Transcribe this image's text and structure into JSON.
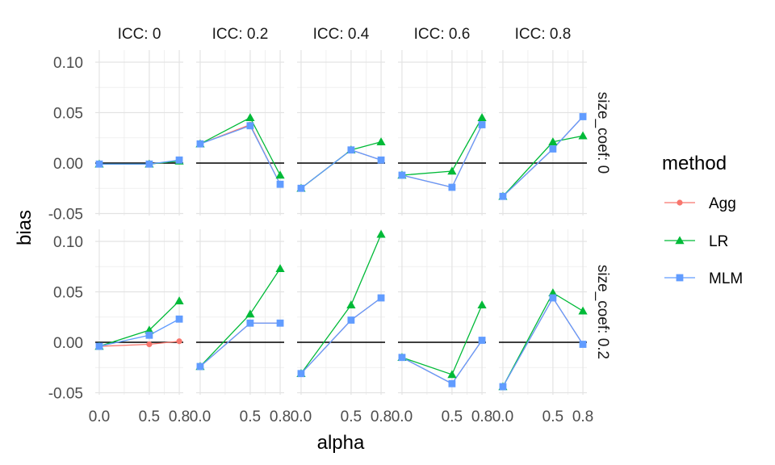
{
  "chart_data": {
    "type": "line",
    "xlabel": "alpha",
    "ylabel": "bias",
    "x": [
      0.0,
      0.5,
      0.8
    ],
    "x_tick_labels": [
      "0.0",
      "0.5",
      "0.8"
    ],
    "y_ticks": [
      -0.05,
      0.0,
      0.05,
      0.1
    ],
    "y_tick_labels": [
      "-0.05",
      "0.00",
      "0.05",
      "0.10"
    ],
    "ylim": [
      -0.052,
      0.112
    ],
    "reference_line": 0,
    "grid": true,
    "legend": {
      "title": "method",
      "position": "right",
      "entries": [
        {
          "name": "Agg",
          "color": "#F8766D",
          "shape": "circle"
        },
        {
          "name": "LR",
          "color": "#00BA38",
          "shape": "triangle"
        },
        {
          "name": "MLM",
          "color": "#619CFF",
          "shape": "square"
        }
      ]
    },
    "col_facets": [
      "ICC: 0",
      "ICC: 0.2",
      "ICC: 0.4",
      "ICC: 0.6",
      "ICC: 0.8"
    ],
    "row_facets": [
      "size_coef: 0",
      "size_coef: 0.2"
    ],
    "panels": [
      {
        "row": 0,
        "col": 0,
        "series": {
          "Agg": [
            -0.001,
            -0.001,
            0.002
          ],
          "LR": [
            -0.001,
            -0.001,
            0.002
          ],
          "MLM": [
            -0.001,
            -0.001,
            0.003
          ]
        }
      },
      {
        "row": 0,
        "col": 1,
        "series": {
          "Agg": [
            0.019,
            0.038,
            -0.021
          ],
          "LR": [
            0.019,
            0.045,
            -0.012
          ],
          "MLM": [
            0.019,
            0.037,
            -0.021
          ]
        }
      },
      {
        "row": 0,
        "col": 2,
        "series": {
          "Agg": [
            -0.025,
            0.013,
            0.003
          ],
          "LR": [
            -0.025,
            0.013,
            0.021
          ],
          "MLM": [
            -0.025,
            0.013,
            0.003
          ]
        }
      },
      {
        "row": 0,
        "col": 3,
        "series": {
          "Agg": [
            -0.012,
            -0.024,
            0.038
          ],
          "LR": [
            -0.012,
            -0.008,
            0.045
          ],
          "MLM": [
            -0.012,
            -0.024,
            0.038
          ]
        }
      },
      {
        "row": 0,
        "col": 4,
        "series": {
          "Agg": [
            -0.033,
            0.014,
            0.046
          ],
          "LR": [
            -0.033,
            0.021,
            0.027
          ],
          "MLM": [
            -0.033,
            0.014,
            0.046
          ]
        }
      },
      {
        "row": 1,
        "col": 0,
        "series": {
          "Agg": [
            -0.004,
            -0.002,
            0.001
          ],
          "LR": [
            -0.004,
            0.012,
            0.041
          ],
          "MLM": [
            -0.004,
            0.007,
            0.023
          ]
        }
      },
      {
        "row": 1,
        "col": 1,
        "series": {
          "Agg": [
            -0.024,
            0.019,
            0.019
          ],
          "LR": [
            -0.024,
            0.028,
            0.073
          ],
          "MLM": [
            -0.024,
            0.019,
            0.019
          ]
        }
      },
      {
        "row": 1,
        "col": 2,
        "series": {
          "Agg": [
            -0.031,
            0.022,
            0.044
          ],
          "LR": [
            -0.031,
            0.037,
            0.107
          ],
          "MLM": [
            -0.031,
            0.022,
            0.044
          ]
        }
      },
      {
        "row": 1,
        "col": 3,
        "series": {
          "Agg": [
            -0.015,
            -0.041,
            0.002
          ],
          "LR": [
            -0.015,
            -0.032,
            0.037
          ],
          "MLM": [
            -0.015,
            -0.041,
            0.002
          ]
        }
      },
      {
        "row": 1,
        "col": 4,
        "series": {
          "Agg": [
            -0.044,
            0.044,
            -0.002
          ],
          "LR": [
            -0.044,
            0.049,
            0.031
          ],
          "MLM": [
            -0.044,
            0.044,
            -0.002
          ]
        }
      }
    ]
  }
}
